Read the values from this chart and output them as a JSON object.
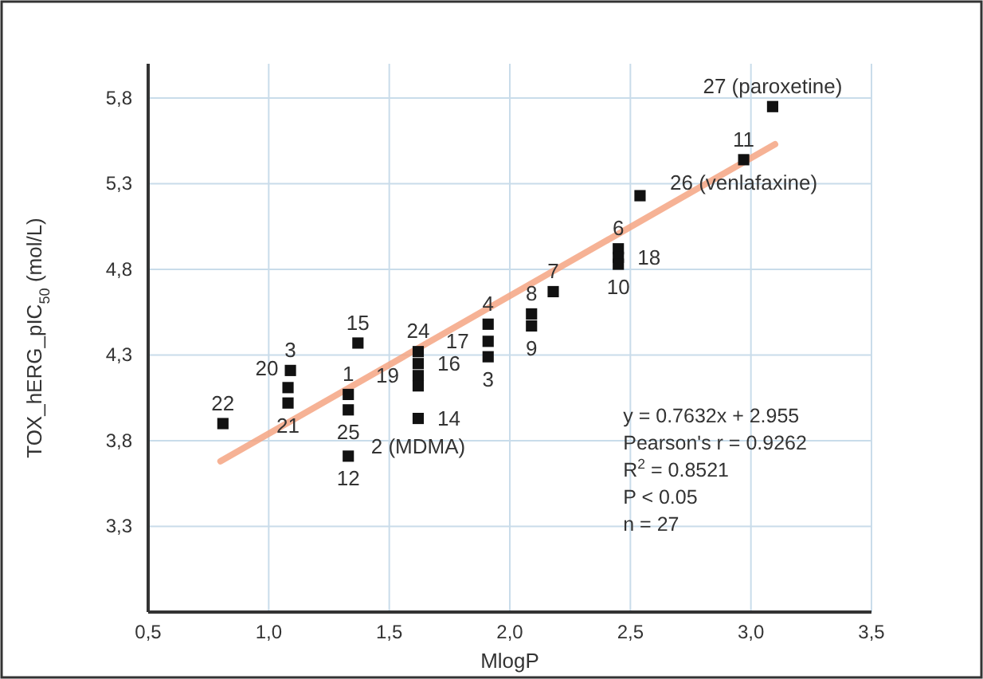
{
  "chart_data": {
    "type": "scatter",
    "xlabel": "MlogP",
    "ylabel": "TOX_hERG_pIC$_{50}$ (mol/L)",
    "xlim": [
      0.5,
      3.5
    ],
    "ylim": [
      2.8,
      6.0
    ],
    "xticks": [
      {
        "value": 0.5,
        "label": "0,5"
      },
      {
        "value": 1.0,
        "label": "1,0"
      },
      {
        "value": 1.5,
        "label": "1,5"
      },
      {
        "value": 2.0,
        "label": "2,0"
      },
      {
        "value": 2.5,
        "label": "2,5"
      },
      {
        "value": 3.0,
        "label": "3,0"
      },
      {
        "value": 3.5,
        "label": "3,5"
      }
    ],
    "yticks": [
      {
        "value": 3.3,
        "label": "3,3"
      },
      {
        "value": 3.8,
        "label": "3,8"
      },
      {
        "value": 4.3,
        "label": "4,3"
      },
      {
        "value": 4.8,
        "label": "4,8"
      },
      {
        "value": 5.3,
        "label": "5,3"
      },
      {
        "value": 5.8,
        "label": "5,8"
      }
    ],
    "grid": true,
    "series": [
      {
        "color": "#111111",
        "marker": "square",
        "x": [
          3.09,
          2.97,
          2.54,
          2.45,
          2.45,
          2.45,
          2.18,
          2.09,
          2.09,
          1.91,
          1.91,
          1.91,
          1.37,
          1.62,
          1.62,
          1.62,
          1.62,
          1.62,
          1.09,
          1.08,
          1.08,
          1.33,
          1.33,
          1.33,
          0.81
        ],
        "values": [
          5.75,
          5.44,
          5.23,
          4.92,
          4.87,
          4.83,
          4.67,
          4.54,
          4.47,
          4.48,
          4.38,
          4.29,
          4.37,
          4.32,
          4.25,
          4.18,
          4.12,
          3.93,
          4.21,
          4.11,
          4.02,
          4.07,
          3.98,
          3.71,
          3.9
        ]
      },
      {
        "type": "line",
        "color": "#f4a582",
        "x": [
          0.8,
          3.1
        ],
        "values": [
          3.68,
          5.53
        ]
      }
    ],
    "annotations": [
      {
        "text": "27 (paroxetine)",
        "x": 3.09,
        "y": 5.75
      },
      {
        "text": "11",
        "x": 2.97,
        "y": 5.44
      },
      {
        "text": "26 (venlafaxine)",
        "x": 2.97,
        "y": 5.44
      },
      {
        "text": "6",
        "x": 2.45,
        "y": 4.92
      },
      {
        "text": "18",
        "x": 2.45,
        "y": 4.87
      },
      {
        "text": "10",
        "x": 2.45,
        "y": 4.83
      },
      {
        "text": "7",
        "x": 2.18,
        "y": 4.67
      },
      {
        "text": "8",
        "x": 2.09,
        "y": 4.54
      },
      {
        "text": "9",
        "x": 2.09,
        "y": 4.47
      },
      {
        "text": "4",
        "x": 1.91,
        "y": 4.48
      },
      {
        "text": "17",
        "x": 1.91,
        "y": 4.38
      },
      {
        "text": "3",
        "x": 1.91,
        "y": 4.29
      },
      {
        "text": "24",
        "x": 1.62,
        "y": 4.32
      },
      {
        "text": "16",
        "x": 1.62,
        "y": 4.25
      },
      {
        "text": "19",
        "x": 1.62,
        "y": 4.18
      },
      {
        "text": "2 (MDMA)",
        "x": 1.62,
        "y": 4.12
      },
      {
        "text": "14",
        "x": 1.62,
        "y": 3.93
      },
      {
        "text": "15",
        "x": 1.37,
        "y": 4.37
      },
      {
        "text": "1",
        "x": 1.33,
        "y": 4.07
      },
      {
        "text": "25",
        "x": 1.33,
        "y": 3.98
      },
      {
        "text": "12",
        "x": 1.33,
        "y": 3.71
      },
      {
        "text": "3",
        "x": 1.09,
        "y": 4.21
      },
      {
        "text": "20",
        "x": 1.08,
        "y": 4.11
      },
      {
        "text": "21",
        "x": 1.08,
        "y": 4.02
      },
      {
        "text": "22",
        "x": 0.81,
        "y": 3.9
      },
      "y = 0.7632x + 2.955",
      "Pearson's r = 0.9262",
      "R$^{2}$ = 0.8521",
      "P < 0.05",
      "n = 27"
    ]
  }
}
